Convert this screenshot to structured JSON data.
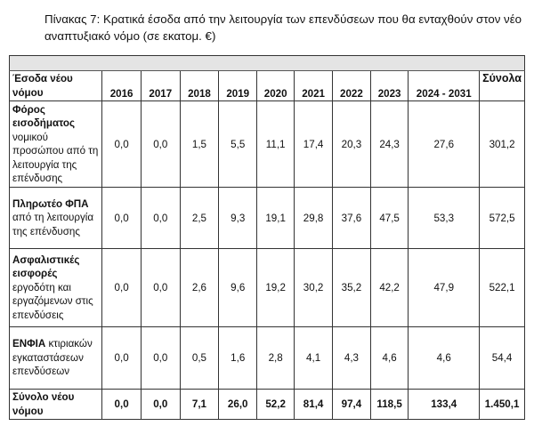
{
  "title": "Πίνακας 7: Κρατικά έσοδα από την λειτουργία των επενδύσεων που θα ενταχθούν στον νέο αναπτυξιακό νόμο (σε εκατομ. €)",
  "table": {
    "header_label": "Έσοδα νέου νόμου",
    "columns": [
      "2016",
      "2017",
      "2018",
      "2019",
      "2020",
      "2021",
      "2022",
      "2023",
      "2024 - 2031",
      "Σύνολα"
    ],
    "rows": [
      {
        "label_bold": "Φόρος εισοδήματος",
        "label_rest": "νομικού προσώπου από τη λειτουργία της επένδυσης",
        "values": [
          "0,0",
          "0,0",
          "1,5",
          "5,5",
          "11,1",
          "17,4",
          "20,3",
          "24,3",
          "27,6",
          "301,2"
        ]
      },
      {
        "label_bold": "Πληρωτέο ΦΠΑ",
        "label_rest": "από τη λειτουργία της επένδυσης",
        "values": [
          "0,0",
          "0,0",
          "2,5",
          "9,3",
          "19,1",
          "29,8",
          "37,6",
          "47,5",
          "53,3",
          "572,5"
        ]
      },
      {
        "label_bold": "Ασφαλιστικές εισφορές",
        "label_rest": "εργοδότη και εργαζόμενων στις επενδύσεις",
        "values": [
          "0,0",
          "0,0",
          "2,6",
          "9,6",
          "19,2",
          "30,2",
          "35,2",
          "42,2",
          "47,9",
          "522,1"
        ]
      },
      {
        "label_bold": "ΕΝΦΙΑ",
        "label_rest": "κτιριακών εγκαταστάσεων επενδύσεων",
        "values": [
          "0,0",
          "0,0",
          "0,5",
          "1,6",
          "2,8",
          "4,1",
          "4,3",
          "4,6",
          "4,6",
          "54,4"
        ]
      }
    ],
    "total": {
      "label": "Σύνολο νέου νόμου",
      "values": [
        "0,0",
        "0,0",
        "7,1",
        "26,0",
        "52,2",
        "81,4",
        "97,4",
        "118,5",
        "133,4",
        "1.450,1"
      ]
    }
  }
}
